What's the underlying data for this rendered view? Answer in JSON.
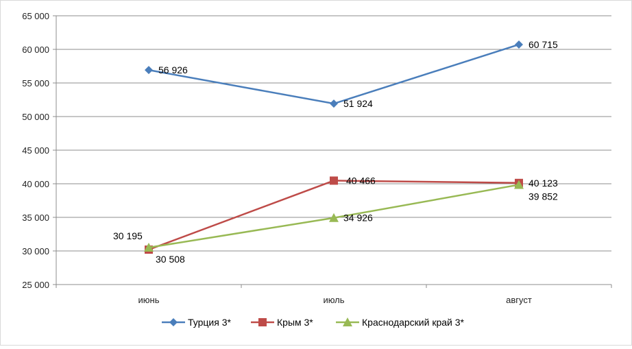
{
  "chart_data": {
    "type": "line",
    "title": "",
    "xlabel": "",
    "ylabel": "",
    "categories": [
      "июнь",
      "июль",
      "август"
    ],
    "ylim": [
      25000,
      65000
    ],
    "y_ticks": [
      25000,
      30000,
      35000,
      40000,
      45000,
      50000,
      55000,
      60000,
      65000
    ],
    "y_tick_labels": [
      "25 000",
      "30 000",
      "35 000",
      "40 000",
      "45 000",
      "50 000",
      "55 000",
      "60 000",
      "65 000"
    ],
    "grid": "horizontal",
    "legend_position": "bottom",
    "series": [
      {
        "name": "Турция 3*",
        "color": "#4a7ebb",
        "marker": "diamond",
        "values": [
          56926,
          51924,
          60715
        ],
        "labels": [
          "56 926",
          "51 924",
          "60 715"
        ]
      },
      {
        "name": "Крым 3*",
        "color": "#be4b48",
        "marker": "square",
        "values": [
          30195,
          40466,
          40123
        ],
        "labels": [
          "30 195",
          "40 466",
          "40 123"
        ]
      },
      {
        "name": "Краснодарский край 3*",
        "color": "#98b954",
        "marker": "triangle",
        "values": [
          30508,
          34926,
          39852
        ],
        "labels": [
          "30 508",
          "34 926",
          "39 852"
        ]
      }
    ]
  }
}
